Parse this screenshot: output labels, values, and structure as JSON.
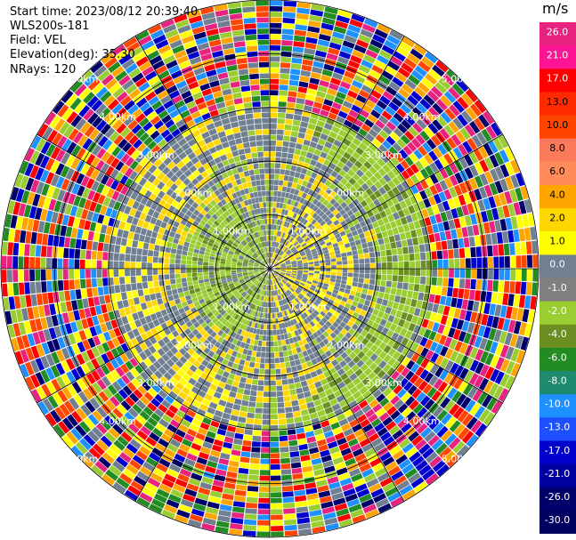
{
  "header": {
    "start_time": "Start time: 2023/08/12 20:39:40",
    "instrument": "WLS200s-181",
    "field": "Field: VEL",
    "elevation": "Elevation(deg): 35.30",
    "nrays": "NRays: 120"
  },
  "colorbar": {
    "units": "m/s",
    "ticks": [
      "26.0",
      "21.0",
      "17.0",
      "13.0",
      "10.0",
      "8.0",
      "6.0",
      "4.0",
      "2.0",
      "1.0",
      "0.0",
      "-1.0",
      "-2.0",
      "-4.0",
      "-6.0",
      "-8.0",
      "-10.0",
      "-13.0",
      "-17.0",
      "-21.0",
      "-26.0",
      "-30.0"
    ],
    "colors": [
      "#e8237f",
      "#ff1493",
      "#ff0000",
      "#ff2a00",
      "#ff4500",
      "#fa7a5a",
      "#ff8c5a",
      "#ffa500",
      "#ffd700",
      "#ffff00",
      "#708090",
      "#808080",
      "#9acd32",
      "#6b8e23",
      "#228b22",
      "#1e8a6e",
      "#1e90ff",
      "#1e50ff",
      "#0000cd",
      "#0000a0",
      "#00006b",
      "#000060"
    ]
  },
  "chart_data": {
    "type": "ppi",
    "field": "VEL",
    "units": "m/s",
    "range_rings_km": [
      1.0,
      2.0,
      3.0,
      4.0,
      5.0
    ],
    "ring_labels": [
      "1.00km",
      "2.00km",
      "3.00km",
      "4.00km",
      "5.00km"
    ],
    "nrays": 120,
    "elevation_deg": 35.3,
    "max_range_km": 5.0,
    "velocity_range": [
      -30,
      26
    ],
    "pattern": {
      "inner_ring_km": 3.0,
      "inner_field": "gray/yellow positive, green negative; noise beyond 3 km",
      "noise_palette": [
        "#e8237f",
        "#ff0000",
        "#ff4500",
        "#ffa500",
        "#ffff00",
        "#9acd32",
        "#228b22",
        "#1e90ff",
        "#0000cd",
        "#00006b",
        "#708090"
      ]
    }
  }
}
